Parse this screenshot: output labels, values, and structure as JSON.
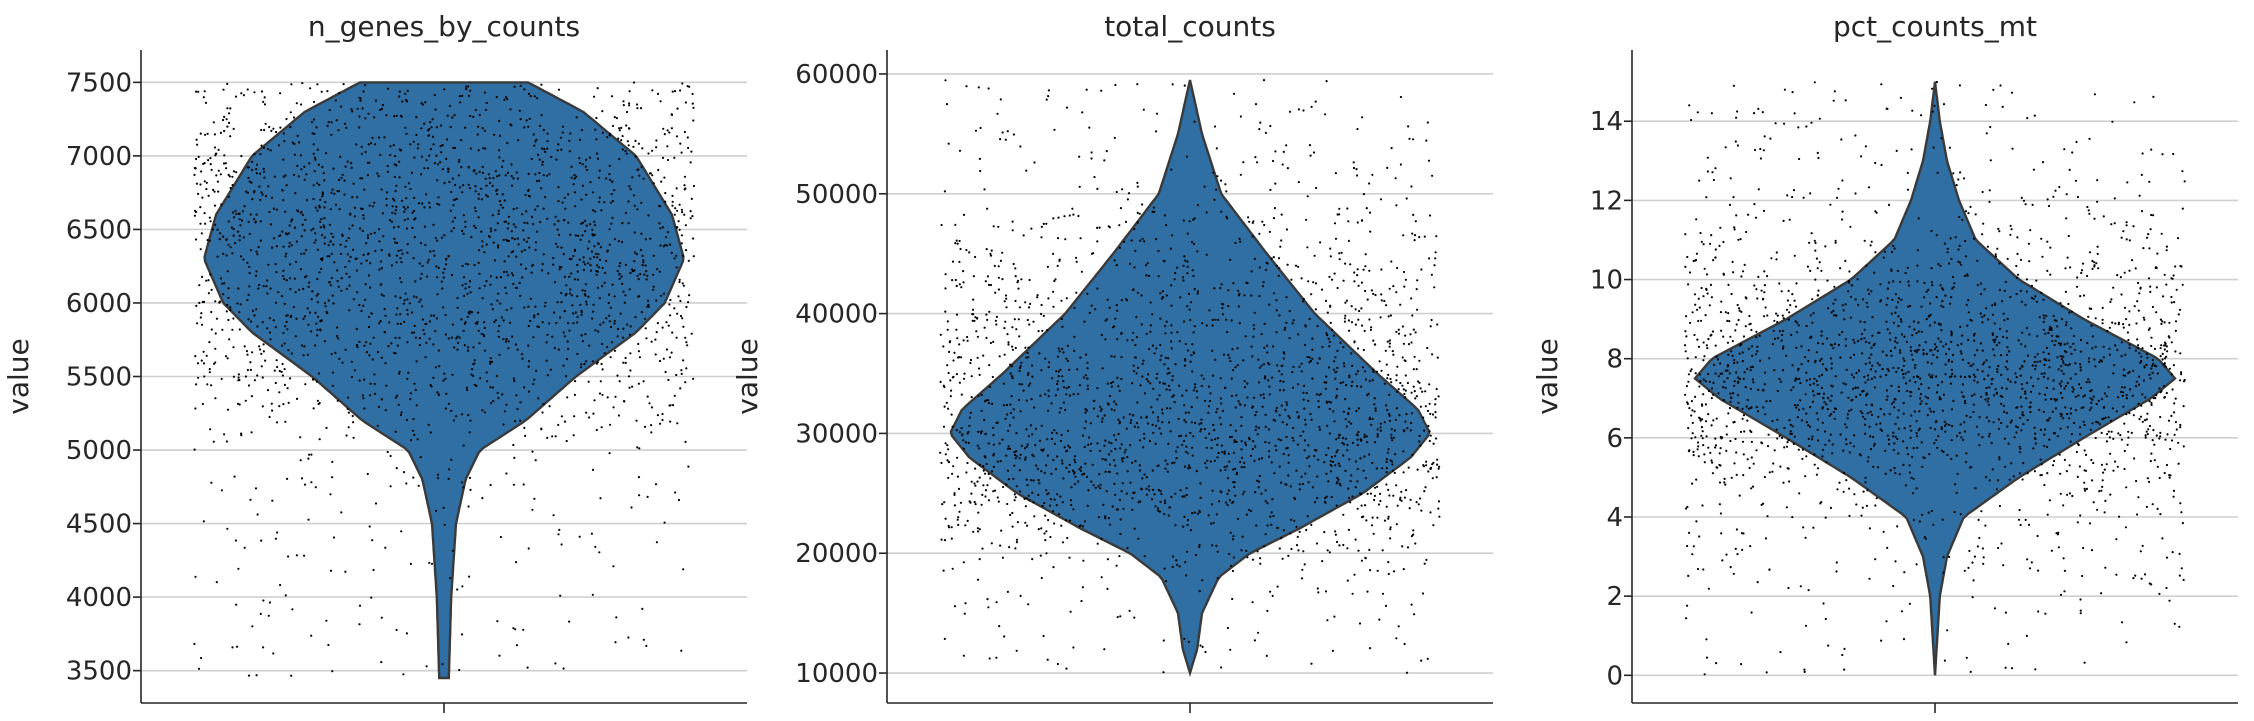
{
  "colors": {
    "violin_fill": "#2f6fa4",
    "violin_edge": "#3a3a3a",
    "points": "#000000",
    "grid": "#cfcfcf",
    "axis": "#262626"
  },
  "chart_data": [
    {
      "type": "violin",
      "title": "n_genes_by_counts",
      "ylabel": "value",
      "xlabel": "",
      "ylim": [
        3280,
        7720
      ],
      "yticks": [
        3500,
        4000,
        4500,
        5000,
        5500,
        6000,
        6500,
        7000,
        7500
      ],
      "ytick_labels": [
        "3500",
        "4000",
        "4500",
        "5000",
        "5500",
        "6000",
        "6500",
        "7000",
        "7500"
      ],
      "grid": true,
      "clip_to_axes": false,
      "points_shown": true,
      "value_range": [
        3450,
        7500
      ],
      "density_profile": [
        [
          3450,
          0.02
        ],
        [
          4000,
          0.03
        ],
        [
          4500,
          0.05
        ],
        [
          4800,
          0.09
        ],
        [
          5000,
          0.15
        ],
        [
          5200,
          0.34
        ],
        [
          5500,
          0.55
        ],
        [
          5800,
          0.8
        ],
        [
          6000,
          0.92
        ],
        [
          6300,
          1.0
        ],
        [
          6600,
          0.95
        ],
        [
          7000,
          0.8
        ],
        [
          7300,
          0.58
        ],
        [
          7500,
          0.35
        ]
      ],
      "n_points": 2200
    },
    {
      "type": "violin",
      "title": "total_counts",
      "ylabel": "value",
      "xlabel": "",
      "ylim": [
        7500,
        62000
      ],
      "yticks": [
        10000,
        20000,
        30000,
        40000,
        50000,
        60000
      ],
      "ytick_labels": [
        "10000",
        "20000",
        "30000",
        "40000",
        "50000",
        "60000"
      ],
      "grid": true,
      "clip_to_axes": true,
      "points_shown": true,
      "value_range": [
        10000,
        59500
      ],
      "density_profile": [
        [
          10000,
          0.0
        ],
        [
          12000,
          0.03
        ],
        [
          15000,
          0.05
        ],
        [
          18000,
          0.12
        ],
        [
          20000,
          0.25
        ],
        [
          22000,
          0.45
        ],
        [
          25000,
          0.72
        ],
        [
          28000,
          0.92
        ],
        [
          30000,
          1.0
        ],
        [
          32000,
          0.95
        ],
        [
          35000,
          0.78
        ],
        [
          40000,
          0.52
        ],
        [
          45000,
          0.32
        ],
        [
          50000,
          0.13
        ],
        [
          55000,
          0.05
        ],
        [
          59500,
          0.0
        ]
      ],
      "n_points": 2200
    },
    {
      "type": "violin",
      "title": "pct_counts_mt",
      "ylabel": "value",
      "xlabel": "",
      "ylim": [
        -0.7,
        15.8
      ],
      "yticks": [
        0,
        2,
        4,
        6,
        8,
        10,
        12,
        14
      ],
      "ytick_labels": [
        "0",
        "2",
        "4",
        "6",
        "8",
        "10",
        "12",
        "14"
      ],
      "grid": true,
      "clip_to_axes": true,
      "points_shown": true,
      "value_range": [
        0.0,
        15.0
      ],
      "density_profile": [
        [
          0.0,
          0.0
        ],
        [
          2.0,
          0.02
        ],
        [
          3.0,
          0.05
        ],
        [
          4.0,
          0.12
        ],
        [
          5.0,
          0.35
        ],
        [
          6.0,
          0.62
        ],
        [
          7.0,
          0.9
        ],
        [
          7.5,
          1.0
        ],
        [
          8.0,
          0.93
        ],
        [
          9.0,
          0.62
        ],
        [
          10.0,
          0.35
        ],
        [
          11.0,
          0.17
        ],
        [
          12.0,
          0.1
        ],
        [
          13.0,
          0.05
        ],
        [
          14.0,
          0.02
        ],
        [
          15.0,
          0.0
        ]
      ],
      "n_points": 2200
    }
  ]
}
